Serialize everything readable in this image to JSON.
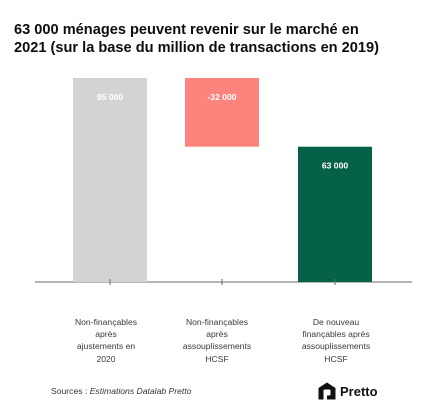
{
  "title_lines": [
    "63 000 ménages peuvent revenir sur le marché en",
    "2021 (sur la base du million de transactions en 2019)"
  ],
  "chart_data": {
    "type": "bar",
    "subtype": "waterfall",
    "categories": [
      [
        "Non-finançables",
        "après",
        "ajustements en",
        "2020"
      ],
      [
        "Non-finançables",
        "après",
        "assouplissements",
        "HCSF"
      ],
      [
        "De nouveau",
        "finançables après",
        "assouplissements",
        "HCSF"
      ]
    ],
    "values": [
      95000,
      -32000,
      63000
    ],
    "data_labels": [
      "95 000",
      "-32 000",
      "63 000"
    ],
    "colors": [
      "#d3d3d3",
      "#fb847d",
      "#066149"
    ],
    "ylim": [
      0,
      95000
    ],
    "grid": false
  },
  "footer": {
    "sources_prefix": "Sources : ",
    "sources_italic": "Estimations Datalab Pretto",
    "brand": "Pretto",
    "brand_icon": "pretto-logo-icon"
  }
}
